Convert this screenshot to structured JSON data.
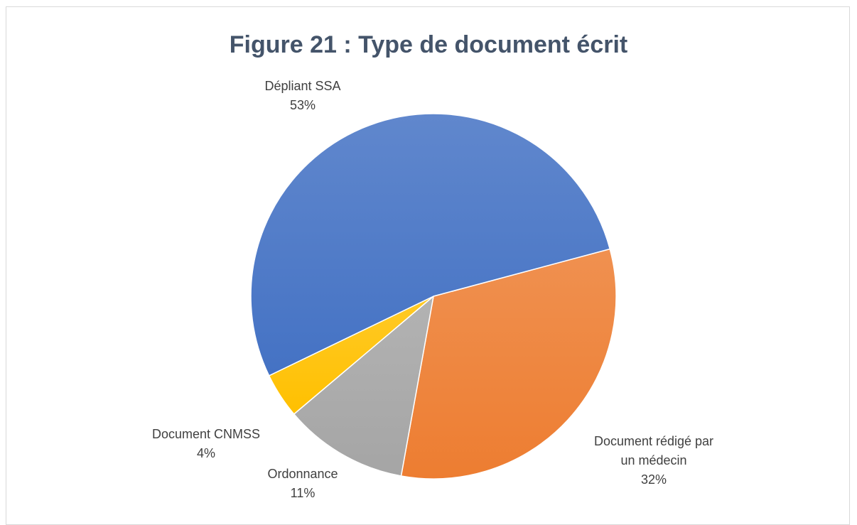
{
  "chart_data": {
    "type": "pie",
    "title": "Figure 21 : Type de document écrit",
    "categories": [
      "Document rédigé par un médecin",
      "Ordonnance",
      "Document CNMSS",
      "Dépliant SSA"
    ],
    "values": [
      32,
      11,
      4,
      53
    ],
    "value_labels": [
      "32%",
      "11%",
      "4%",
      "53%"
    ],
    "colors": [
      "#ed7d31",
      "#a5a5a5",
      "#ffc000",
      "#4472c4"
    ]
  }
}
